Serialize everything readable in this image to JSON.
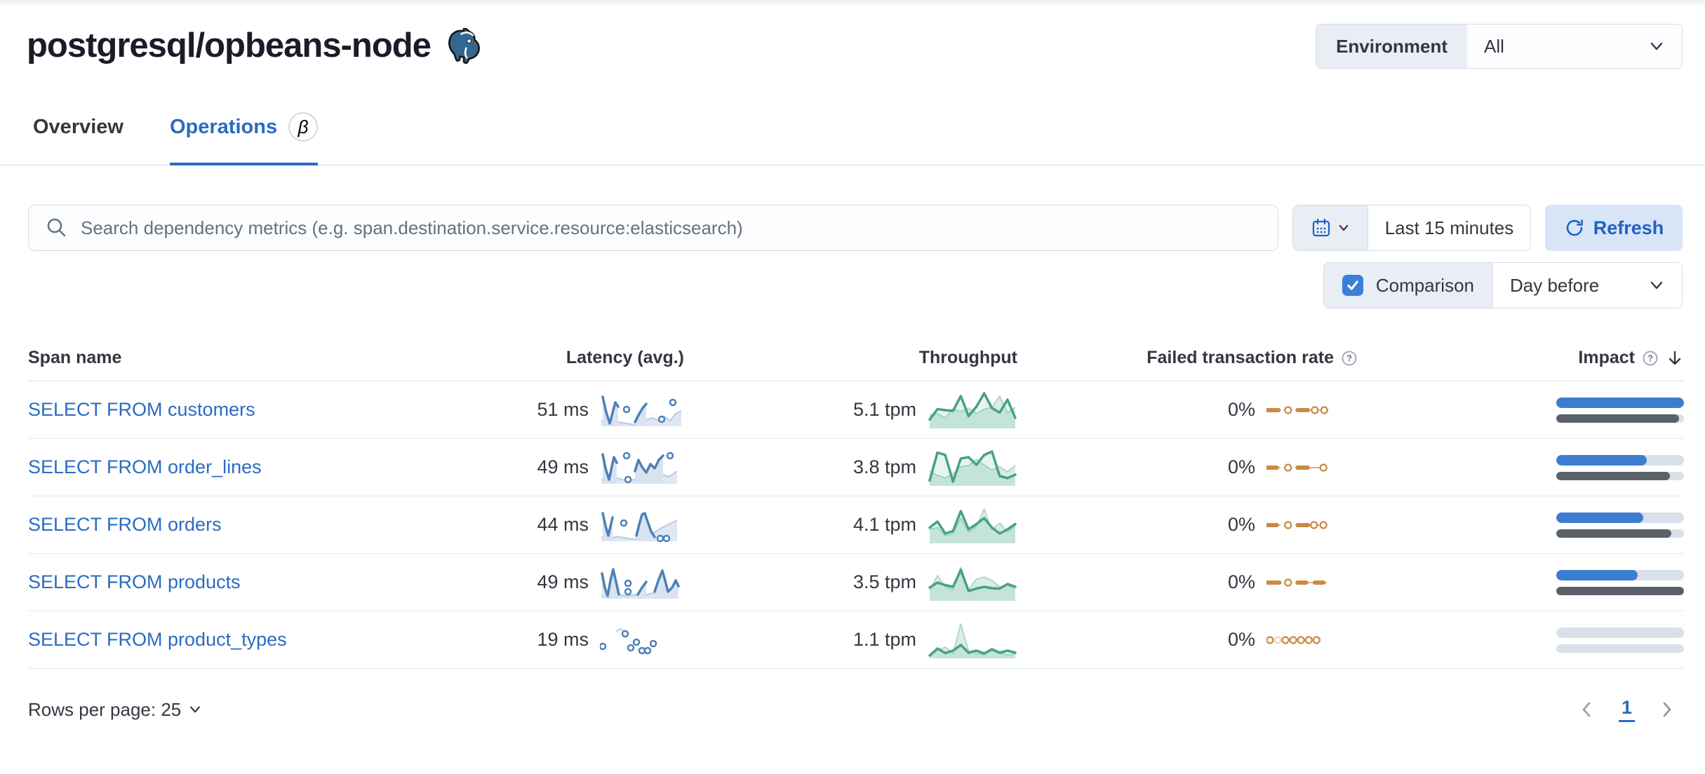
{
  "page": {
    "title": "postgresql/opbeans-node"
  },
  "environment": {
    "label": "Environment",
    "value": "All"
  },
  "tabs": [
    {
      "label": "Overview",
      "active": false
    },
    {
      "label": "Operations",
      "active": true,
      "beta": "β"
    }
  ],
  "search": {
    "placeholder": "Search dependency metrics (e.g. span.destination.service.resource:elasticsearch)"
  },
  "time_picker": {
    "value": "Last 15 minutes",
    "refresh_label": "Refresh"
  },
  "comparison": {
    "label": "Comparison",
    "checked": true,
    "value": "Day before"
  },
  "table": {
    "columns": [
      "Span name",
      "Latency (avg.)",
      "Throughput",
      "Failed transaction rate",
      "Impact"
    ],
    "rows": [
      {
        "name": "SELECT FROM customers",
        "latency": "51 ms",
        "throughput": "5.1 tpm",
        "failed_rate": "0%",
        "impact": {
          "current": 100,
          "previous": 96
        },
        "latency_spark": {
          "segments": [
            [
              [
                4,
                6
              ],
              [
                9,
                28
              ],
              [
                14,
                44
              ],
              [
                22,
                14
              ],
              [
                26,
                20
              ]
            ],
            [
              [
                50,
                42
              ],
              [
                55,
                32
              ],
              [
                61,
                22
              ],
              [
                66,
                16
              ]
            ]
          ],
          "dots": [
            [
              38,
              24
            ],
            [
              88,
              38
            ],
            [
              104,
              14
            ]
          ],
          "comp_area": [
            [
              2,
              40
            ],
            [
              14,
              46
            ],
            [
              26,
              42
            ],
            [
              38,
              44
            ],
            [
              50,
              46
            ],
            [
              62,
              40
            ],
            [
              74,
              36
            ],
            [
              84,
              40
            ],
            [
              92,
              34
            ],
            [
              100,
              40
            ],
            [
              108,
              30
            ],
            [
              116,
              26
            ]
          ]
        },
        "throughput_spark": {
          "current": [
            25,
            55,
            52,
            50,
            92,
            35,
            62,
            100,
            58,
            45,
            82,
            30
          ],
          "comparison": [
            38,
            42,
            30,
            55,
            48,
            58,
            42,
            55,
            60,
            92,
            45,
            60
          ]
        },
        "failed_spark": {
          "dashes": [
            [
              0,
              14
            ],
            [
              36,
              48
            ]
          ],
          "rings": [
            25,
            56,
            67
          ],
          "faint": [],
          "connectors": [
            [
              48,
              67
            ]
          ]
        }
      },
      {
        "name": "SELECT FROM order_lines",
        "latency": "49 ms",
        "throughput": "3.8 tpm",
        "failed_rate": "0%",
        "impact": {
          "current": 71,
          "previous": 89
        },
        "latency_spark": {
          "segments": [
            [
              [
                4,
                6
              ],
              [
                8,
                26
              ],
              [
                13,
                42
              ],
              [
                20,
                10
              ],
              [
                24,
                18
              ]
            ],
            [
              [
                50,
                30
              ],
              [
                55,
                14
              ],
              [
                60,
                24
              ],
              [
                66,
                32
              ],
              [
                72,
                20
              ],
              [
                78,
                26
              ],
              [
                84,
                14
              ],
              [
                90,
                8
              ]
            ]
          ],
          "dots": [
            [
              38,
              8
            ],
            [
              40,
              42
            ],
            [
              100,
              8
            ]
          ],
          "comp_area": [
            [
              2,
              42
            ],
            [
              14,
              45
            ],
            [
              26,
              40
            ],
            [
              38,
              44
            ],
            [
              50,
              42
            ],
            [
              62,
              38
            ],
            [
              74,
              40
            ],
            [
              86,
              34
            ],
            [
              98,
              38
            ],
            [
              110,
              30
            ]
          ]
        },
        "throughput_spark": {
          "current": [
            15,
            95,
            88,
            12,
            78,
            82,
            60,
            88,
            98,
            28,
            22,
            32
          ],
          "comparison": [
            42,
            30,
            22,
            35,
            55,
            58,
            75,
            60,
            45,
            55,
            40,
            58
          ]
        },
        "failed_spark": {
          "dashes": [
            [
              0,
              12
            ],
            [
              36,
              48
            ]
          ],
          "rings": [
            25,
            66
          ],
          "faint": [],
          "connectors": [
            [
              12,
              16
            ],
            [
              48,
              66
            ]
          ]
        }
      },
      {
        "name": "SELECT FROM orders",
        "latency": "44 ms",
        "throughput": "4.1 tpm",
        "failed_rate": "0%",
        "impact": {
          "current": 68,
          "previous": 90
        },
        "latency_spark": {
          "segments": [
            [
              [
                4,
                8
              ],
              [
                8,
                26
              ],
              [
                12,
                40
              ],
              [
                18,
                14
              ]
            ],
            [
              [
                52,
                40
              ],
              [
                56,
                24
              ],
              [
                60,
                10
              ],
              [
                64,
                8
              ],
              [
                68,
                20
              ],
              [
                73,
                34
              ],
              [
                78,
                42
              ]
            ]
          ],
          "dots": [
            [
              34,
              22
            ],
            [
              86,
              44
            ],
            [
              95,
              44
            ]
          ],
          "comp_area": [
            [
              2,
              42
            ],
            [
              14,
              44
            ],
            [
              26,
              41
            ],
            [
              38,
              44
            ],
            [
              50,
              45
            ],
            [
              62,
              42
            ],
            [
              74,
              38
            ],
            [
              86,
              30
            ],
            [
              98,
              24
            ],
            [
              110,
              18
            ]
          ]
        },
        "throughput_spark": {
          "current": [
            45,
            62,
            28,
            35,
            92,
            40,
            55,
            72,
            45,
            28,
            40,
            55
          ],
          "comparison": [
            40,
            45,
            22,
            28,
            72,
            32,
            48,
            98,
            38,
            58,
            32,
            50
          ]
        },
        "failed_spark": {
          "dashes": [
            [
              0,
              12
            ],
            [
              36,
              48
            ]
          ],
          "rings": [
            25,
            55,
            66
          ],
          "faint": [],
          "connectors": [
            [
              12,
              16
            ],
            [
              48,
              66
            ]
          ]
        }
      },
      {
        "name": "SELECT FROM products",
        "latency": "49 ms",
        "throughput": "3.5 tpm",
        "failed_rate": "0%",
        "impact": {
          "current": 64,
          "previous": 100
        },
        "latency_spark": {
          "segments": [
            [
              [
                3,
                12
              ],
              [
                7,
                32
              ],
              [
                11,
                44
              ],
              [
                15,
                22
              ],
              [
                19,
                6
              ],
              [
                23,
                24
              ],
              [
                27,
                42
              ]
            ],
            [
              [
                54,
                42
              ],
              [
                60,
                32
              ],
              [
                66,
                24
              ]
            ],
            [
              [
                78,
                38
              ],
              [
                84,
                20
              ],
              [
                89,
                8
              ],
              [
                93,
                22
              ],
              [
                97,
                38
              ],
              [
                103,
                32
              ],
              [
                108,
                22
              ],
              [
                112,
                30
              ]
            ]
          ],
          "dots": [
            [
              40,
              26
            ],
            [
              40,
              38
            ]
          ],
          "comp_area": [
            [
              2,
              44
            ],
            [
              14,
              46
            ],
            [
              26,
              42
            ],
            [
              38,
              44
            ],
            [
              50,
              42
            ],
            [
              62,
              44
            ],
            [
              74,
              40
            ],
            [
              86,
              42
            ],
            [
              98,
              44
            ],
            [
              110,
              40
            ]
          ]
        },
        "throughput_spark": {
          "current": [
            38,
            52,
            45,
            40,
            88,
            28,
            35,
            40,
            36,
            35,
            48,
            40
          ],
          "comparison": [
            30,
            72,
            40,
            32,
            95,
            32,
            62,
            68,
            58,
            40,
            45,
            32
          ]
        },
        "failed_spark": {
          "dashes": [
            [
              0,
              15
            ],
            [
              36,
              46
            ],
            [
              56,
              66
            ]
          ],
          "rings": [
            25
          ],
          "faint": [],
          "connectors": [
            [
              46,
              70
            ]
          ]
        }
      },
      {
        "name": "SELECT FROM product_types",
        "latency": "19 ms",
        "throughput": "1.1 tpm",
        "failed_rate": "0%",
        "impact": {
          "current": 0,
          "previous": 0
        },
        "latency_spark": {
          "segments": [],
          "comp_segments": [
            [
              [
                24,
                12
              ],
              [
                29,
                9
              ],
              [
                34,
                12
              ]
            ]
          ],
          "dots": [
            [
              4,
              34
            ],
            [
              36,
              16
            ],
            [
              44,
              36
            ],
            [
              52,
              28
            ],
            [
              60,
              40
            ],
            [
              68,
              40
            ],
            [
              76,
              30
            ]
          ],
          "comp_area": []
        },
        "throughput_spark": {
          "current": [
            8,
            28,
            15,
            22,
            38,
            16,
            22,
            14,
            26,
            16,
            22,
            16
          ],
          "comparison": [
            6,
            22,
            32,
            14,
            98,
            20,
            14,
            10,
            22,
            14,
            10,
            12
          ]
        },
        "failed_spark": {
          "dashes": [],
          "rings": [
            4,
            13,
            22,
            31,
            40,
            49,
            58
          ],
          "faint": [
            13
          ],
          "connectors": []
        }
      }
    ]
  },
  "pagination": {
    "rows_per_page_label": "Rows per page: 25",
    "current_page": "1"
  },
  "colors": {
    "accent_blue": "#2a6bc2",
    "impact_blue": "#3d7dd1",
    "impact_gray": "#5a6169",
    "latency_blue": "#4d80b6",
    "latency_light": "#b9cbdf",
    "latency_area": "#d9e3f0",
    "comp_area": "#dfe7f2",
    "green": "#47a188",
    "green_light_stroke": "#a9d6c4",
    "green_light_area": "#d9ede4",
    "orange": "#c98a43"
  }
}
